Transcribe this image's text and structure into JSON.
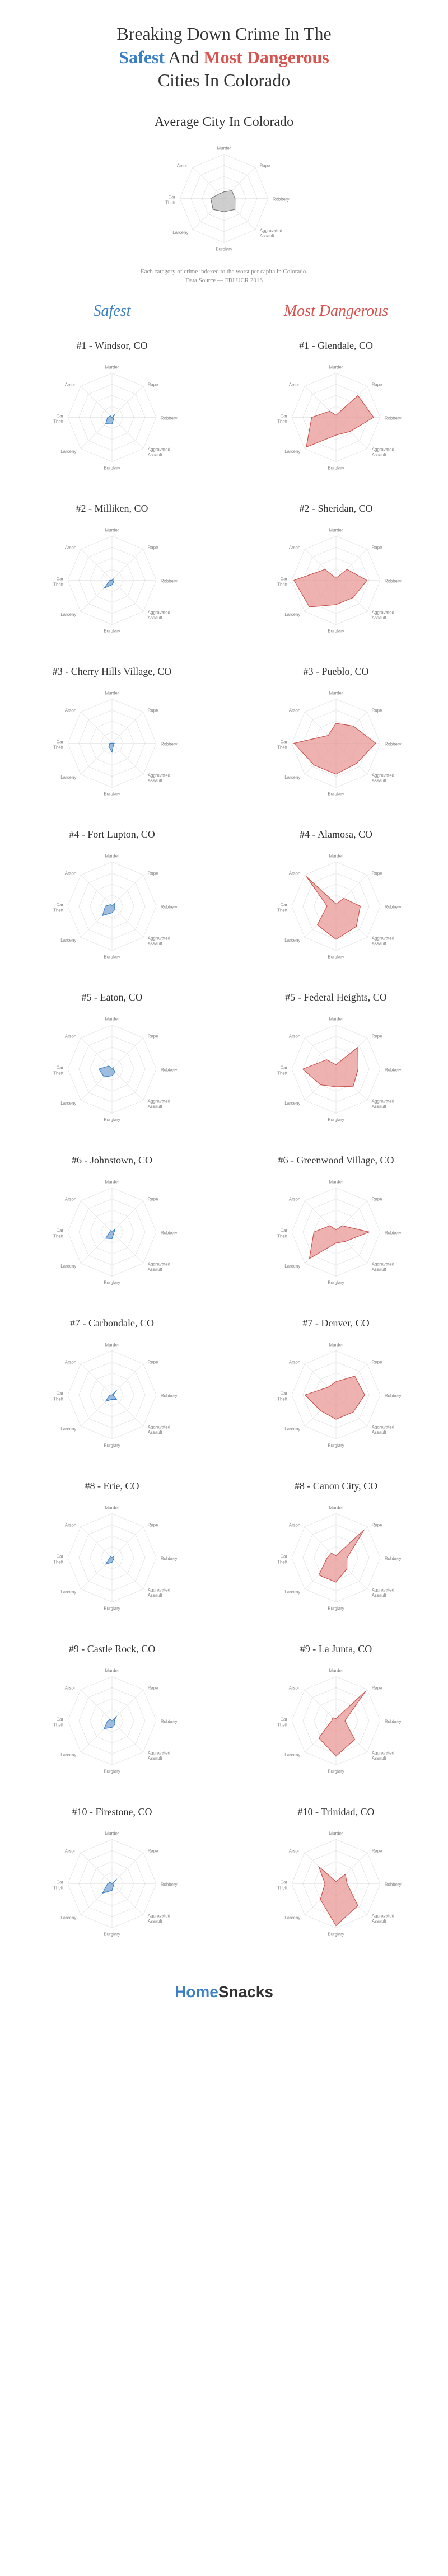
{
  "header": {
    "line1": "Breaking Down Crime In The",
    "word_safest": "Safest",
    "word_and": " And ",
    "word_dangerous": "Most Dangerous",
    "line3": "Cities In Colorado"
  },
  "avg": {
    "title": "Average City In Colorado",
    "sub1": "Each category of crime indexed to the worst per capita in Colorado.",
    "sub2": "Data Source — FBI UCR 2016"
  },
  "columns": {
    "safe": "Safest",
    "danger": "Most Dangerous"
  },
  "axes": [
    "Murder",
    "Rape",
    "Robbery",
    "Aggravated Assault",
    "Burglary",
    "Larceny",
    "Car Theft",
    "Arson"
  ],
  "radar_style": {
    "grid_color": "#d8d8d8",
    "grid_width": 0.6,
    "axis_label_fontsize": 8,
    "axis_label_color": "#888888",
    "safe_fill": "#7fa8d4",
    "safe_stroke": "#3b7fc4",
    "danger_fill": "#e89995",
    "danger_stroke": "#c9534f",
    "neutral_fill": "#bfbfbf",
    "neutral_stroke": "#777777",
    "fill_opacity": 0.75,
    "rings": 4,
    "chart_radius": 80,
    "svg_size": 300
  },
  "avg_data": [
    0.15,
    0.25,
    0.25,
    0.35,
    0.3,
    0.35,
    0.3,
    0.15
  ],
  "cities": [
    {
      "safe": {
        "title": "#1 - Windsor, CO",
        "data": [
          0.0,
          0.1,
          0.02,
          0.05,
          0.15,
          0.2,
          0.1,
          0.05
        ]
      },
      "danger": {
        "title": "#1 - Glendale, CO",
        "data": [
          0.05,
          0.7,
          0.85,
          0.45,
          0.4,
          0.95,
          0.55,
          0.2
        ]
      }
    },
    {
      "safe": {
        "title": "#2 - Milliken, CO",
        "data": [
          0.0,
          0.05,
          0.02,
          0.05,
          0.1,
          0.25,
          0.05,
          0.0
        ]
      },
      "danger": {
        "title": "#2 - Sheridan, CO",
        "data": [
          0.05,
          0.35,
          0.7,
          0.55,
          0.55,
          0.85,
          0.95,
          0.35
        ]
      }
    },
    {
      "safe": {
        "title": "#3 - Cherry Hills Village, CO",
        "data": [
          0.0,
          0.0,
          0.05,
          0.05,
          0.2,
          0.1,
          0.05,
          0.0
        ]
      },
      "danger": {
        "title": "#3 - Pueblo, CO",
        "data": [
          0.45,
          0.55,
          0.9,
          0.65,
          0.7,
          0.7,
          0.95,
          0.25
        ]
      }
    },
    {
      "safe": {
        "title": "#4 - Fort Lupton, CO",
        "data": [
          0.0,
          0.1,
          0.05,
          0.1,
          0.15,
          0.3,
          0.15,
          0.05
        ]
      },
      "danger": {
        "title": "#4 - Alamosa, CO",
        "data": [
          0.05,
          0.25,
          0.55,
          0.65,
          0.75,
          0.6,
          0.2,
          0.95
        ]
      }
    },
    {
      "safe": {
        "title": "#5 - Eaton, CO",
        "data": [
          0.0,
          0.05,
          0.02,
          0.1,
          0.15,
          0.25,
          0.3,
          0.1
        ]
      },
      "danger": {
        "title": "#5 - Federal Heights, CO",
        "data": [
          0.1,
          0.7,
          0.5,
          0.55,
          0.4,
          0.5,
          0.75,
          0.3
        ]
      }
    },
    {
      "safe": {
        "title": "#6 - Johnstown, CO",
        "data": [
          0.0,
          0.1,
          0.05,
          0.05,
          0.15,
          0.2,
          0.05,
          0.05
        ]
      },
      "danger": {
        "title": "#6 - Greenwood Village, CO",
        "data": [
          0.05,
          0.2,
          0.75,
          0.3,
          0.25,
          0.85,
          0.5,
          0.2
        ]
      }
    },
    {
      "safe": {
        "title": "#7 - Carbondale, CO",
        "data": [
          0.0,
          0.15,
          0.02,
          0.15,
          0.1,
          0.2,
          0.05,
          0.0
        ]
      },
      "danger": {
        "title": "#7 - Denver, CO",
        "data": [
          0.3,
          0.6,
          0.65,
          0.55,
          0.55,
          0.5,
          0.7,
          0.25
        ]
      }
    },
    {
      "safe": {
        "title": "#8 - Erie, CO",
        "data": [
          0.0,
          0.05,
          0.02,
          0.05,
          0.1,
          0.2,
          0.05,
          0.05
        ]
      },
      "danger": {
        "title": "#8 - Canon City, CO",
        "data": [
          0.05,
          0.9,
          0.25,
          0.35,
          0.55,
          0.55,
          0.2,
          0.15
        ]
      }
    },
    {
      "safe": {
        "title": "#9 - Castle Rock, CO",
        "data": [
          0.0,
          0.15,
          0.05,
          0.1,
          0.15,
          0.25,
          0.1,
          0.05
        ]
      },
      "danger": {
        "title": "#9 - La Junta, CO",
        "data": [
          0.05,
          0.95,
          0.2,
          0.6,
          0.8,
          0.55,
          0.1,
          0.1
        ]
      }
    },
    {
      "safe": {
        "title": "#10 - Firestone, CO",
        "data": [
          0.0,
          0.15,
          0.02,
          0.05,
          0.15,
          0.3,
          0.1,
          0.05
        ]
      },
      "danger": {
        "title": "#10 - Trinidad, CO",
        "data": [
          0.05,
          0.3,
          0.25,
          0.7,
          0.95,
          0.5,
          0.25,
          0.55
        ]
      }
    }
  ],
  "footer": {
    "home": "Home",
    "snacks": "Snacks"
  }
}
